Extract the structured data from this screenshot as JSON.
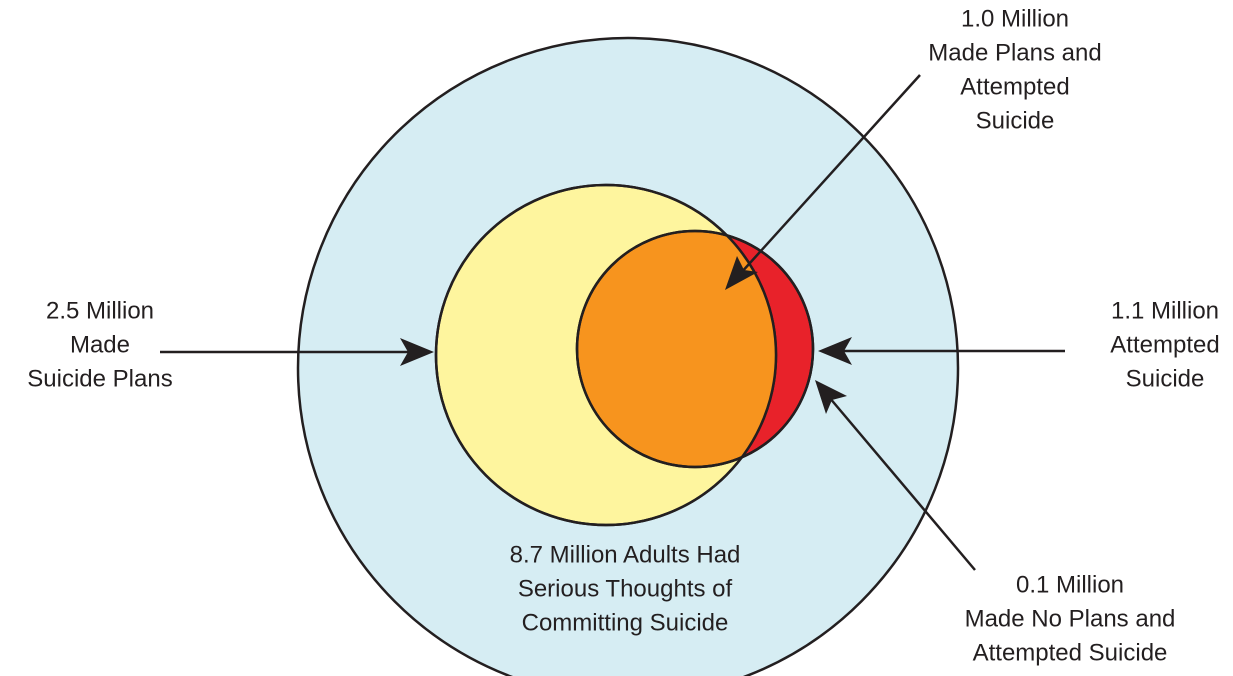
{
  "diagram": {
    "labels": [
      {
        "name": "total",
        "lines": [
          "8.7 Million Adults Had",
          "Serious Thoughts of",
          "Committing Suicide"
        ]
      },
      {
        "name": "plans",
        "lines": [
          "2.5 Million",
          "Made",
          "Suicide Plans"
        ]
      },
      {
        "name": "attempted",
        "lines": [
          "1.1 Million",
          "Attempted",
          "Suicide"
        ]
      },
      {
        "name": "plans-attempted",
        "lines": [
          "1.0 Million",
          "Made Plans and",
          "Attempted",
          "Suicide"
        ]
      },
      {
        "name": "no-plans-attempted",
        "lines": [
          "0.1 Million",
          "Made No Plans and",
          "Attempted Suicide"
        ]
      }
    ]
  }
}
